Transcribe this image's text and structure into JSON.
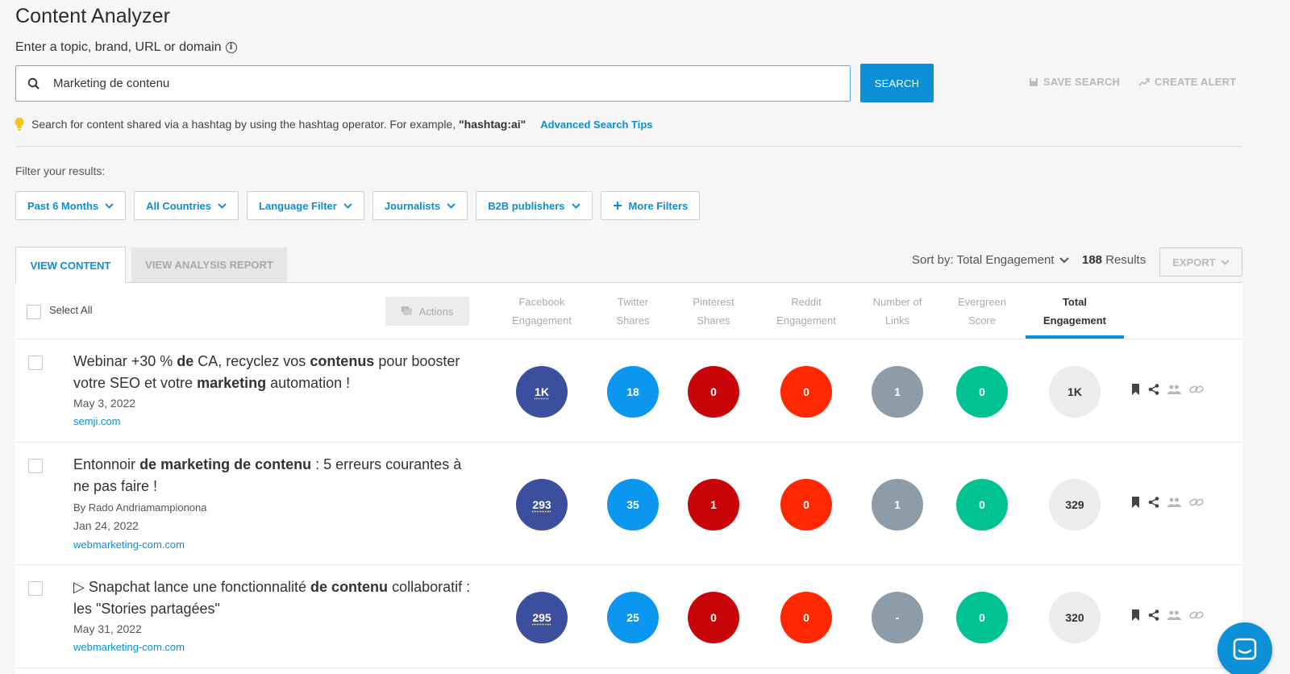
{
  "page": {
    "title": "Content Analyzer",
    "search_label": "Enter a topic, brand, URL or domain"
  },
  "search": {
    "value": "Marketing de contenu",
    "button": "SEARCH",
    "save_label": "SAVE SEARCH",
    "alert_label": "CREATE ALERT"
  },
  "tip": {
    "text": "Search for content shared via a hashtag by using the hashtag operator. For example,",
    "example": "\"hashtag:ai\"",
    "link": "Advanced Search Tips"
  },
  "filters": {
    "label": "Filter your results:",
    "items": [
      "Past 6 Months",
      "All Countries",
      "Language Filter",
      "Journalists",
      "B2B publishers"
    ],
    "more": "More Filters"
  },
  "tabs": {
    "view_content": "VIEW CONTENT",
    "view_report": "VIEW ANALYSIS REPORT"
  },
  "sort": {
    "label": "Sort by: Total Engagement",
    "results_count": "188",
    "results_word": "Results",
    "export": "EXPORT"
  },
  "table": {
    "select_all": "Select All",
    "actions": "Actions",
    "columns": [
      {
        "line1": "Facebook",
        "line2": "Engagement"
      },
      {
        "line1": "Twitter",
        "line2": "Shares"
      },
      {
        "line1": "Pinterest",
        "line2": "Shares"
      },
      {
        "line1": "Reddit",
        "line2": "Engagement"
      },
      {
        "line1": "Number of",
        "line2": "Links"
      },
      {
        "line1": "Evergreen",
        "line2": "Score"
      },
      {
        "line1": "Total",
        "line2": "Engagement"
      }
    ],
    "rows": [
      {
        "title_html": "Webinar +30 % <b>de</b> CA, recyclez vos <b>contenus</b> pour booster votre SEO et votre <b>marketing</b> automation !",
        "author": "",
        "date": "May 3, 2022",
        "domain": "semji.com",
        "facebook": "1K",
        "twitter": "18",
        "pinterest": "0",
        "reddit": "0",
        "links": "1",
        "evergreen": "0",
        "total": "1K"
      },
      {
        "title_html": "Entonnoir <b>de marketing de contenu</b> : 5 erreurs courantes à ne pas faire !",
        "author": "By  Rado Andriamampionona",
        "date": "Jan 24, 2022",
        "domain": "webmarketing-com.com",
        "facebook": "293",
        "twitter": "35",
        "pinterest": "1",
        "reddit": "0",
        "links": "1",
        "evergreen": "0",
        "total": "329"
      },
      {
        "title_html": "▷ Snapchat lance une fonctionnalité <b>de contenu</b> collaboratif : les \"Stories partagées\"",
        "author": "",
        "date": "May 31, 2022",
        "domain": "webmarketing-com.com",
        "facebook": "295",
        "twitter": "25",
        "pinterest": "0",
        "reddit": "0",
        "links": "-",
        "evergreen": "0",
        "total": "320"
      }
    ]
  },
  "colors": {
    "accent": "#0b8fd6",
    "facebook": "#3b4f9e",
    "twitter": "#0b96f0",
    "pinterest": "#c8060a",
    "reddit": "#ff2800",
    "links": "#8c9ca8",
    "evergreen": "#00c293"
  },
  "icons": [
    "search-icon",
    "info-icon",
    "save-icon",
    "trend-icon",
    "bulb-icon",
    "chevron-down-icon",
    "plus-icon",
    "bookmark-icon",
    "share-icon",
    "people-icon",
    "link-icon",
    "chat-icon"
  ]
}
